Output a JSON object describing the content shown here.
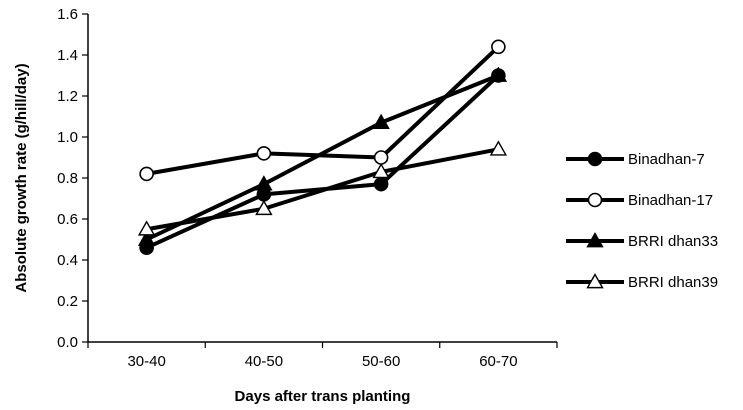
{
  "chart_data": {
    "type": "line",
    "categories": [
      "30-40",
      "40-50",
      "50-60",
      "60-70"
    ],
    "xlabel": "Days after trans planting",
    "ylabel": "Absolute growth rate (g/hill/day)",
    "ylim": [
      0,
      1.6
    ],
    "ytick_step": 0.2,
    "yticks": [
      "0.0",
      "0.2",
      "0.4",
      "0.6",
      "0.8",
      "1.0",
      "1.2",
      "1.4",
      "1.6"
    ],
    "grid": false,
    "legend_position": "right",
    "series": [
      {
        "name": "Binadhan-7",
        "marker": "filled-circle",
        "values": [
          0.46,
          0.72,
          0.77,
          1.3
        ]
      },
      {
        "name": "Binadhan-17",
        "marker": "open-circle",
        "values": [
          0.82,
          0.92,
          0.9,
          1.44
        ]
      },
      {
        "name": "BRRI dhan33",
        "marker": "filled-triangle",
        "values": [
          0.5,
          0.77,
          1.07,
          1.3
        ]
      },
      {
        "name": "BRRI dhan39",
        "marker": "open-triangle",
        "values": [
          0.55,
          0.65,
          0.83,
          0.94
        ]
      }
    ]
  }
}
